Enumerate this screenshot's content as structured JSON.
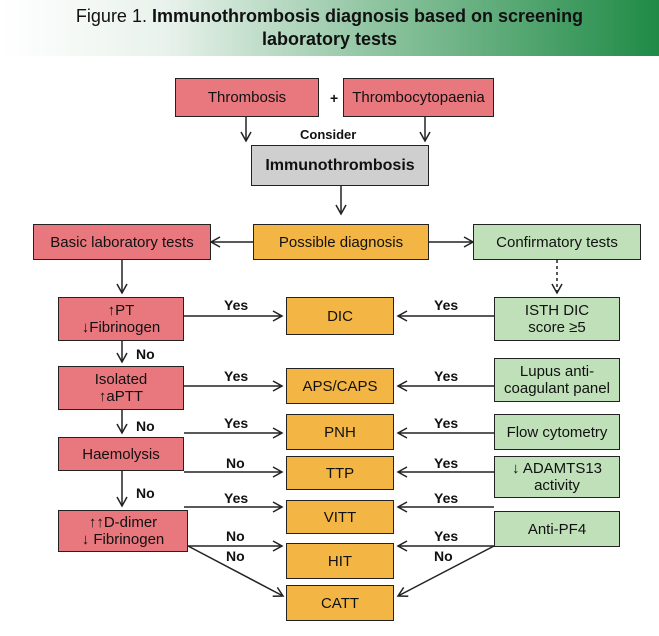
{
  "figure": {
    "prefix": "Figure 1.",
    "title_line1": "Immunothrombosis diagnosis based on screening",
    "title_line2": "laboratory tests"
  },
  "colors": {
    "red": "#e8777e",
    "orange": "#f3b543",
    "green": "#bfe0b8",
    "grey": "#cfcfcf",
    "banner_accent": "#1f8a46"
  },
  "nodes": {
    "thrombosis": "Thrombosis",
    "plus": "+",
    "thrombocytopaenia": "Thrombocytopaenia",
    "consider": "Consider",
    "immunothrombosis": "Immunothrombosis",
    "basic_tests": "Basic laboratory tests",
    "possible_diagnosis": "Possible diagnosis",
    "confirmatory_tests": "Confirmatory tests",
    "pt_fib": {
      "line1": "↑PT",
      "line2": "↓Fibrinogen"
    },
    "isolated_aptt": {
      "line1": "Isolated",
      "line2": "↑aPTT"
    },
    "haemolysis": "Haemolysis",
    "ddimer_fib": {
      "line1": "↑↑D-dimer",
      "line2": "↓ Fibrinogen"
    },
    "dic": "DIC",
    "aps": "APS/CAPS",
    "pnh": "PNH",
    "ttp": "TTP",
    "vitt": "VITT",
    "hit": "HIT",
    "catt": "CATT",
    "isth": {
      "line1": "ISTH DIC",
      "line2": "score ≥5"
    },
    "lupus": {
      "line1": "Lupus anti-",
      "line2": "coagulant panel"
    },
    "flow": "Flow cytometry",
    "adamts": {
      "line1": "↓ ADAMTS13",
      "line2": "activity"
    },
    "antipf4": "Anti-PF4"
  },
  "edge_labels": {
    "yes": "Yes",
    "no": "No"
  }
}
